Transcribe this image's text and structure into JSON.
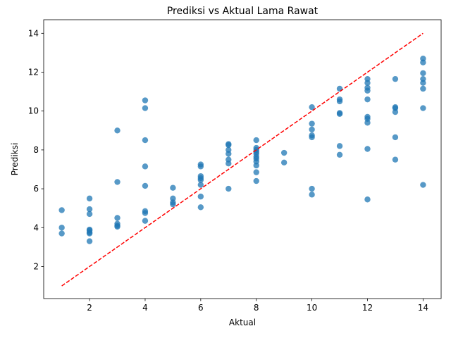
{
  "chart_data": {
    "type": "scatter",
    "title": "Prediksi vs Aktual Lama Rawat",
    "xlabel": "Aktual",
    "ylabel": "Prediksi",
    "xlim": [
      0.35,
      14.65
    ],
    "ylim": [
      0.35,
      14.7
    ],
    "xticks": [
      2,
      4,
      6,
      8,
      10,
      12,
      14
    ],
    "yticks": [
      2,
      4,
      6,
      8,
      10,
      12,
      14
    ],
    "grid": false,
    "colors": {
      "points": "#1f77b4",
      "reference": "#ff0000"
    },
    "reference_line": {
      "style": "dashed",
      "x": [
        1,
        14
      ],
      "y": [
        1,
        14
      ]
    },
    "points": [
      [
        1,
        4.9
      ],
      [
        1,
        4.0
      ],
      [
        1,
        3.7
      ],
      [
        2,
        5.5
      ],
      [
        2,
        4.95
      ],
      [
        2,
        4.7
      ],
      [
        2,
        3.9
      ],
      [
        2,
        3.85
      ],
      [
        2,
        3.75
      ],
      [
        2,
        3.7
      ],
      [
        2,
        3.3
      ],
      [
        3,
        9.0
      ],
      [
        3,
        6.35
      ],
      [
        3,
        4.5
      ],
      [
        3,
        4.2
      ],
      [
        3,
        4.1
      ],
      [
        3,
        4.05
      ],
      [
        4,
        10.55
      ],
      [
        4,
        10.15
      ],
      [
        4,
        8.5
      ],
      [
        4,
        7.15
      ],
      [
        4,
        6.15
      ],
      [
        4,
        4.85
      ],
      [
        4,
        4.75
      ],
      [
        4,
        4.35
      ],
      [
        5,
        6.05
      ],
      [
        5,
        5.5
      ],
      [
        5,
        5.3
      ],
      [
        5,
        5.2
      ],
      [
        6,
        7.25
      ],
      [
        6,
        7.15
      ],
      [
        6,
        6.65
      ],
      [
        6,
        6.55
      ],
      [
        6,
        6.45
      ],
      [
        6,
        6.2
      ],
      [
        6,
        5.6
      ],
      [
        6,
        5.05
      ],
      [
        7,
        8.3
      ],
      [
        7,
        8.25
      ],
      [
        7,
        8.0
      ],
      [
        7,
        7.8
      ],
      [
        7,
        7.5
      ],
      [
        7,
        7.3
      ],
      [
        7,
        6.0
      ],
      [
        8,
        8.5
      ],
      [
        8,
        8.1
      ],
      [
        8,
        8.0
      ],
      [
        8,
        7.9
      ],
      [
        8,
        7.8
      ],
      [
        8,
        7.65
      ],
      [
        8,
        7.55
      ],
      [
        8,
        7.4
      ],
      [
        8,
        7.2
      ],
      [
        8,
        6.85
      ],
      [
        8,
        6.4
      ],
      [
        9,
        7.85
      ],
      [
        9,
        7.35
      ],
      [
        10,
        10.2
      ],
      [
        10,
        9.35
      ],
      [
        10,
        9.05
      ],
      [
        10,
        8.75
      ],
      [
        10,
        8.65
      ],
      [
        10,
        6.0
      ],
      [
        10,
        5.7
      ],
      [
        11,
        11.15
      ],
      [
        11,
        10.6
      ],
      [
        11,
        10.5
      ],
      [
        11,
        9.9
      ],
      [
        11,
        9.85
      ],
      [
        11,
        8.2
      ],
      [
        11,
        7.75
      ],
      [
        12,
        11.65
      ],
      [
        12,
        11.45
      ],
      [
        12,
        11.2
      ],
      [
        12,
        11.05
      ],
      [
        12,
        10.6
      ],
      [
        12,
        9.7
      ],
      [
        12,
        9.6
      ],
      [
        12,
        9.4
      ],
      [
        12,
        8.05
      ],
      [
        12,
        5.45
      ],
      [
        13,
        11.65
      ],
      [
        13,
        10.2
      ],
      [
        13,
        10.15
      ],
      [
        13,
        9.95
      ],
      [
        13,
        8.65
      ],
      [
        13,
        7.5
      ],
      [
        14,
        12.7
      ],
      [
        14,
        12.5
      ],
      [
        14,
        11.95
      ],
      [
        14,
        11.65
      ],
      [
        14,
        11.45
      ],
      [
        14,
        11.15
      ],
      [
        14,
        10.15
      ],
      [
        14,
        6.2
      ]
    ]
  }
}
